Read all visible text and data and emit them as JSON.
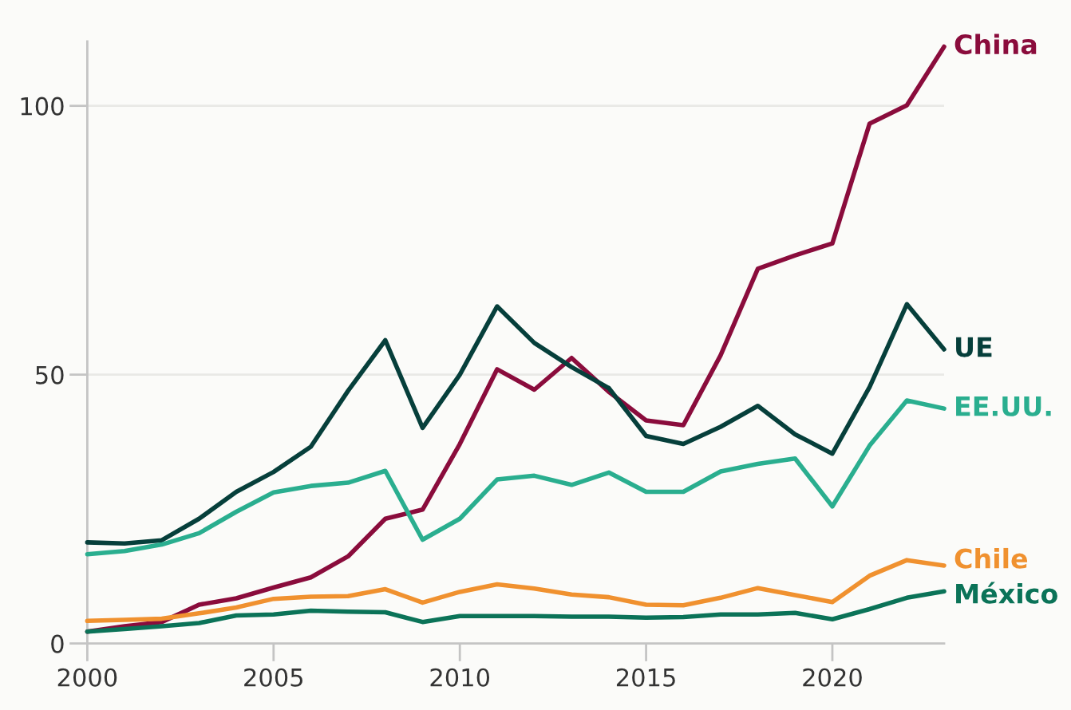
{
  "chart_data": {
    "type": "line",
    "x": [
      2000,
      2001,
      2002,
      2003,
      2004,
      2005,
      2006,
      2007,
      2008,
      2009,
      2010,
      2011,
      2012,
      2013,
      2014,
      2015,
      2016,
      2017,
      2018,
      2019,
      2020,
      2021,
      2022,
      2023
    ],
    "series": [
      {
        "name": "China",
        "color": "#8a0c3c",
        "values": [
          2.2,
          3.2,
          4.0,
          7.2,
          8.4,
          10.4,
          12.3,
          16.2,
          23.2,
          24.9,
          37.1,
          51.0,
          47.2,
          53.1,
          46.8,
          41.5,
          40.6,
          53.6,
          69.7,
          72.2,
          74.4,
          96.7,
          100.1,
          111
        ]
      },
      {
        "name": "UE",
        "color": "#063f3b",
        "values": [
          18.8,
          18.6,
          19.2,
          23.2,
          28.2,
          31.9,
          36.6,
          47.0,
          56.4,
          40.1,
          50.0,
          62.7,
          55.9,
          51.4,
          47.5,
          38.6,
          37.1,
          40.3,
          44.2,
          38.9,
          35.3,
          47.7,
          63.1,
          54.7
        ]
      },
      {
        "name": "EE.UU.",
        "color": "#2aae8f",
        "values": [
          16.6,
          17.2,
          18.4,
          20.5,
          24.5,
          28.1,
          29.3,
          29.9,
          32.1,
          19.3,
          23.2,
          30.5,
          31.2,
          29.5,
          31.8,
          28.2,
          28.2,
          32.0,
          33.4,
          34.4,
          25.5,
          36.8,
          45.2,
          43.7
        ]
      },
      {
        "name": "Chile",
        "color": "#f0912f",
        "values": [
          4.2,
          4.4,
          4.6,
          5.6,
          6.7,
          8.3,
          8.7,
          8.8,
          10.1,
          7.6,
          9.6,
          11.0,
          10.2,
          9.1,
          8.6,
          7.2,
          7.1,
          8.5,
          10.3,
          9.0,
          7.7,
          12.6,
          15.5,
          14.5
        ]
      },
      {
        "name": "México",
        "color": "#0b7358",
        "values": [
          2.2,
          2.7,
          3.2,
          3.8,
          5.2,
          5.4,
          6.1,
          5.9,
          5.8,
          4.0,
          5.1,
          5.1,
          5.1,
          5.0,
          5.0,
          4.8,
          4.9,
          5.4,
          5.4,
          5.7,
          4.5,
          6.4,
          8.5,
          9.7
        ]
      }
    ],
    "xlim": [
      2000,
      2023
    ],
    "xticks": [
      2000,
      2005,
      2010,
      2015,
      2020
    ],
    "ylim": [
      0,
      112
    ],
    "yticks": [
      0,
      50,
      100
    ],
    "grid": "y"
  }
}
